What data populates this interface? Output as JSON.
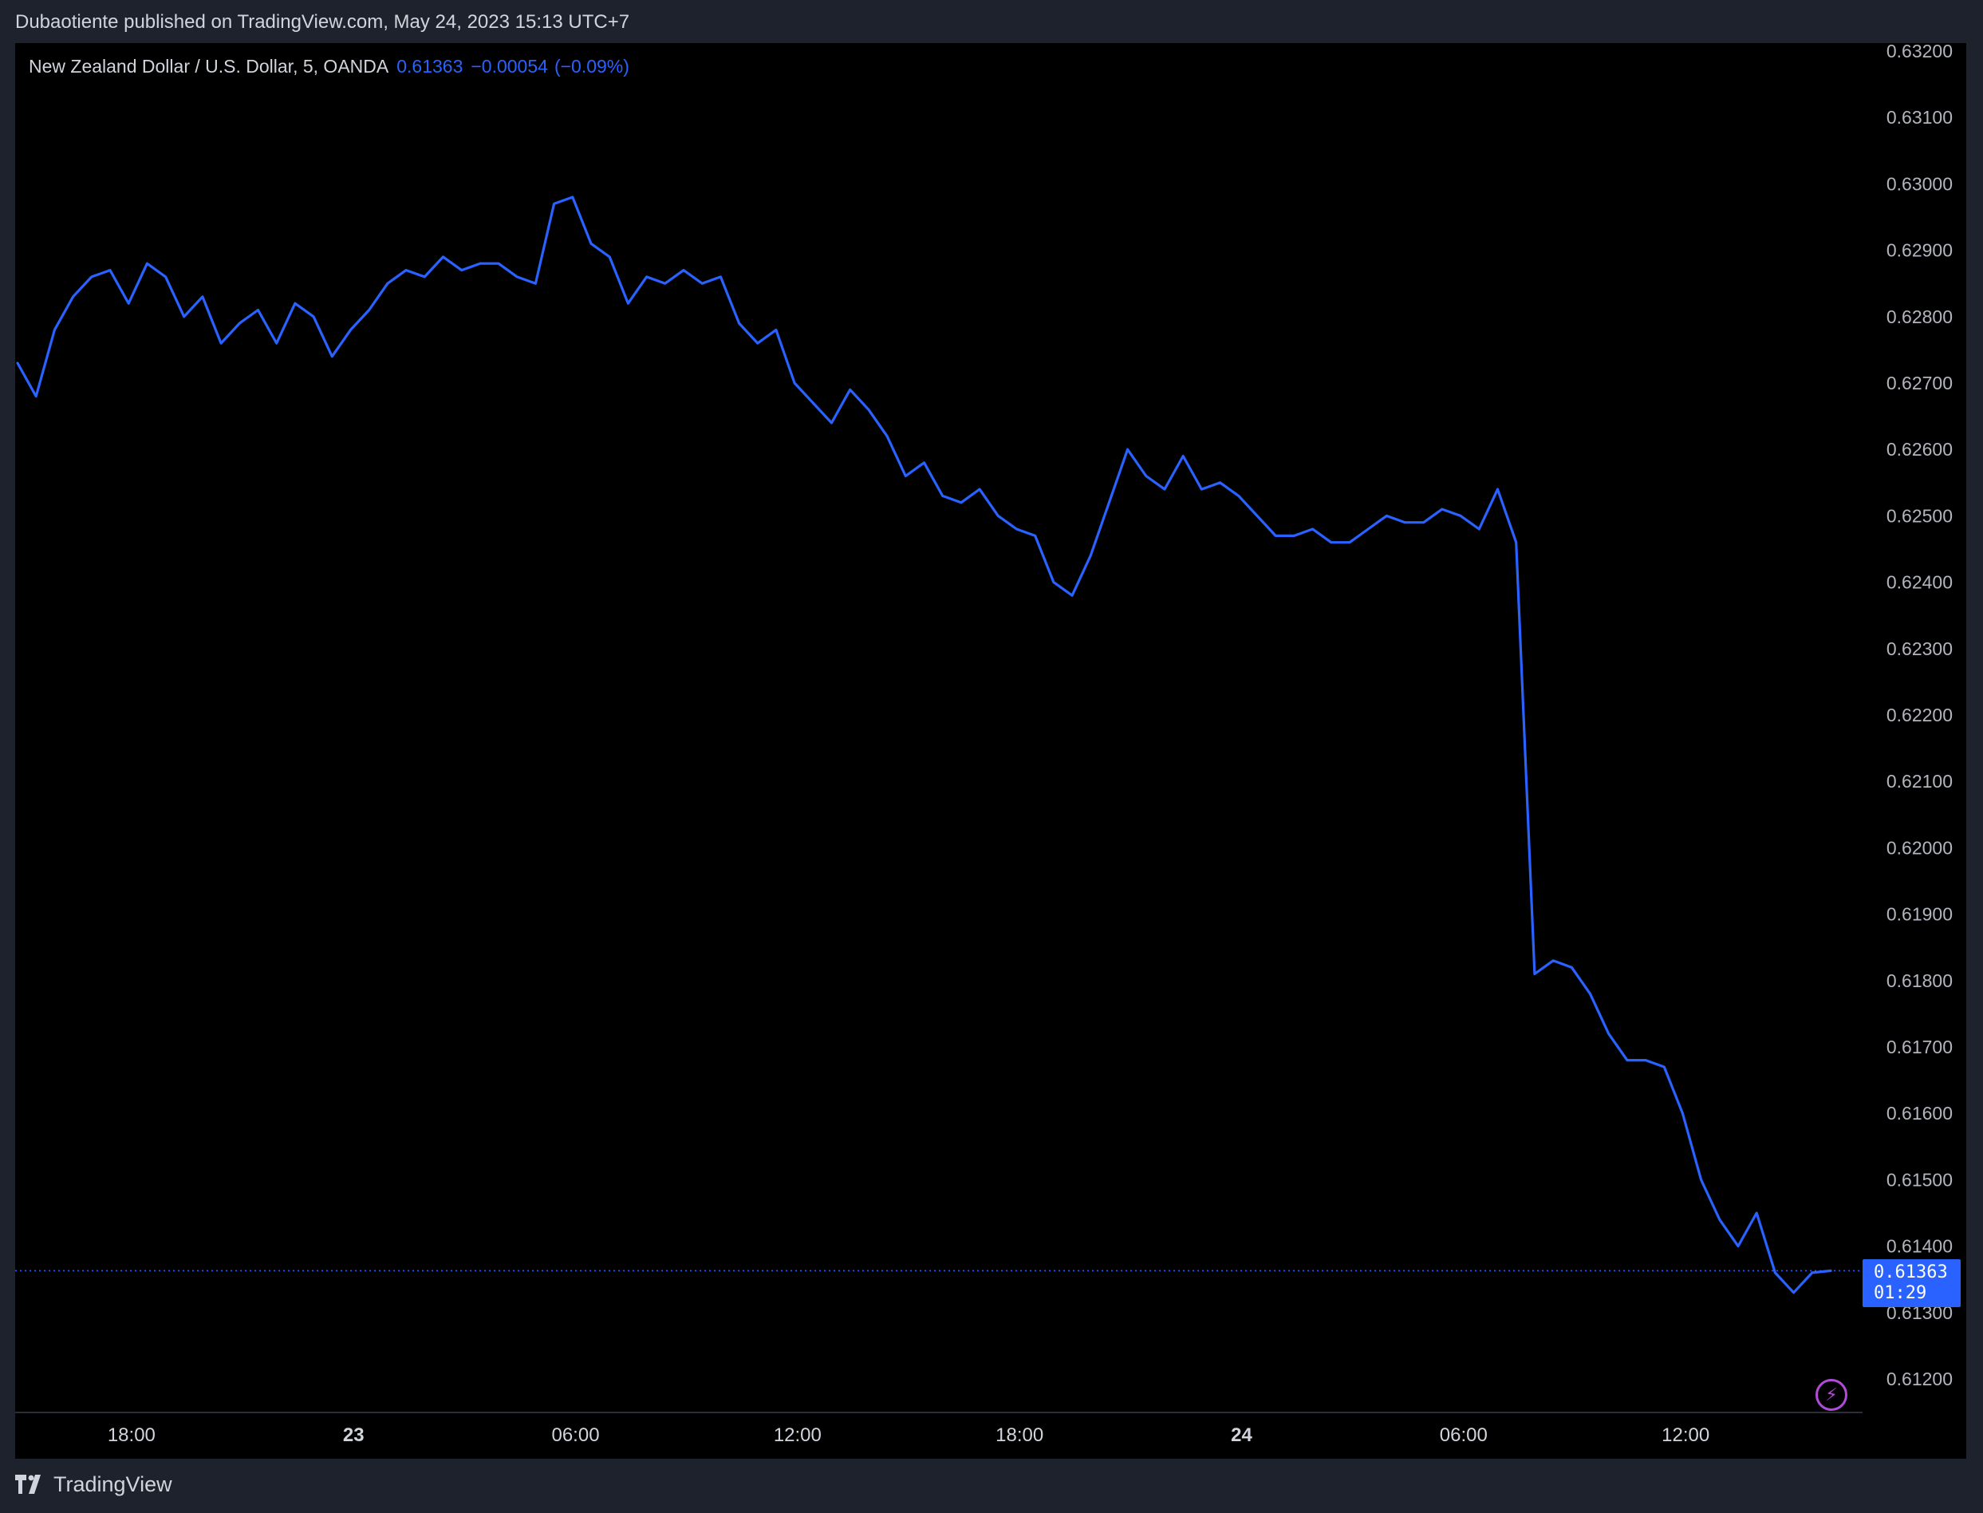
{
  "header": {
    "published": "Dubaotiente published on TradingView.com, May 24, 2023 15:13 UTC+7"
  },
  "legend": {
    "symbol": "New Zealand Dollar / U.S. Dollar, 5, OANDA",
    "last": "0.61363",
    "change": "−0.00054",
    "change_pct": "(−0.09%)"
  },
  "price_tag": {
    "price": "0.61363",
    "countdown": "01:29"
  },
  "footer": {
    "brand": "TradingView"
  },
  "colors": {
    "line": "#2962ff",
    "background": "#000000",
    "frame": "#1e222d",
    "text": "#d1d4dc",
    "bolt": "#b24bd6"
  },
  "icons": [
    "tradingview-logo-icon",
    "lightning-bolt-icon"
  ],
  "chart_data": {
    "type": "line",
    "title": "",
    "xlabel": "",
    "ylabel": "",
    "ylim": [
      0.6115,
      0.6321
    ],
    "grid": false,
    "y_axis_side": "right",
    "y_ticks": [
      "0.63200",
      "0.63100",
      "0.63000",
      "0.62900",
      "0.62800",
      "0.62700",
      "0.62600",
      "0.62500",
      "0.62400",
      "0.62300",
      "0.62200",
      "0.62100",
      "0.62000",
      "0.61900",
      "0.61800",
      "0.61700",
      "0.61600",
      "0.61500",
      "0.61400",
      "0.61300",
      "0.61200"
    ],
    "x_ticks": [
      {
        "label": "18:00",
        "bold": false
      },
      {
        "label": "23",
        "bold": true
      },
      {
        "label": "06:00",
        "bold": false
      },
      {
        "label": "12:00",
        "bold": false
      },
      {
        "label": "18:00",
        "bold": false
      },
      {
        "label": "24",
        "bold": true
      },
      {
        "label": "06:00",
        "bold": false
      },
      {
        "label": "12:00",
        "bold": false
      }
    ],
    "x_range": [
      "May 22 14:55",
      "May 24 15:10"
    ],
    "x_unit": "hours",
    "last_price": 0.61363,
    "series": [
      {
        "x": [
          0,
          0.5,
          1,
          1.5,
          2,
          2.5,
          3,
          3.5,
          4,
          4.5,
          5,
          5.5,
          6,
          6.5,
          7,
          7.5,
          8,
          8.5,
          9,
          9.5,
          10,
          10.5,
          11,
          11.5,
          12,
          12.5,
          13,
          13.5,
          14,
          14.5,
          15,
          15.5,
          16,
          16.5,
          17,
          17.5,
          18,
          18.5,
          19,
          19.5,
          20,
          20.5,
          21,
          21.5,
          22,
          22.5,
          23,
          23.5,
          24,
          24.5,
          25,
          25.5,
          26,
          26.5,
          27,
          27.5,
          28,
          28.5,
          29,
          29.5,
          30,
          30.5,
          31,
          31.5,
          32,
          32.5,
          33,
          33.5,
          34,
          34.5,
          35,
          35.5,
          36,
          36.5,
          37,
          37.5,
          38,
          38.5,
          39,
          39.5,
          40,
          40.5,
          41,
          41.5,
          42,
          42.5,
          43,
          43.5,
          44,
          44.5,
          45,
          45.5,
          46,
          46.5,
          47,
          47.5,
          48,
          48.5,
          49
        ],
        "values": [
          0.6273,
          0.6268,
          0.6278,
          0.6283,
          0.6286,
          0.6287,
          0.6282,
          0.6288,
          0.6286,
          0.628,
          0.6283,
          0.6276,
          0.6279,
          0.6281,
          0.6276,
          0.6282,
          0.628,
          0.6274,
          0.6278,
          0.6281,
          0.6285,
          0.6287,
          0.6286,
          0.6289,
          0.6287,
          0.6288,
          0.6288,
          0.6286,
          0.6285,
          0.6297,
          0.6298,
          0.6291,
          0.6289,
          0.6282,
          0.6286,
          0.6285,
          0.6287,
          0.6285,
          0.6286,
          0.6279,
          0.6276,
          0.6278,
          0.627,
          0.6267,
          0.6264,
          0.6269,
          0.6266,
          0.6262,
          0.6256,
          0.6258,
          0.6253,
          0.6252,
          0.6254,
          0.625,
          0.6248,
          0.6247,
          0.624,
          0.6238,
          0.6244,
          0.6252,
          0.626,
          0.6256,
          0.6254,
          0.6259,
          0.6254,
          0.6255,
          0.6253,
          0.625,
          0.6247,
          0.6247,
          0.6248,
          0.6246,
          0.6246,
          0.6248,
          0.625,
          0.6249,
          0.6249,
          0.6251,
          0.625,
          0.6248,
          0.6254,
          0.6246,
          0.6181,
          0.6183,
          0.6182,
          0.6178,
          0.6172,
          0.6168,
          0.6168,
          0.6167,
          0.616,
          0.615,
          0.6144,
          0.614,
          0.6145,
          0.6136,
          0.6133,
          0.6136,
          0.61363
        ]
      }
    ]
  }
}
